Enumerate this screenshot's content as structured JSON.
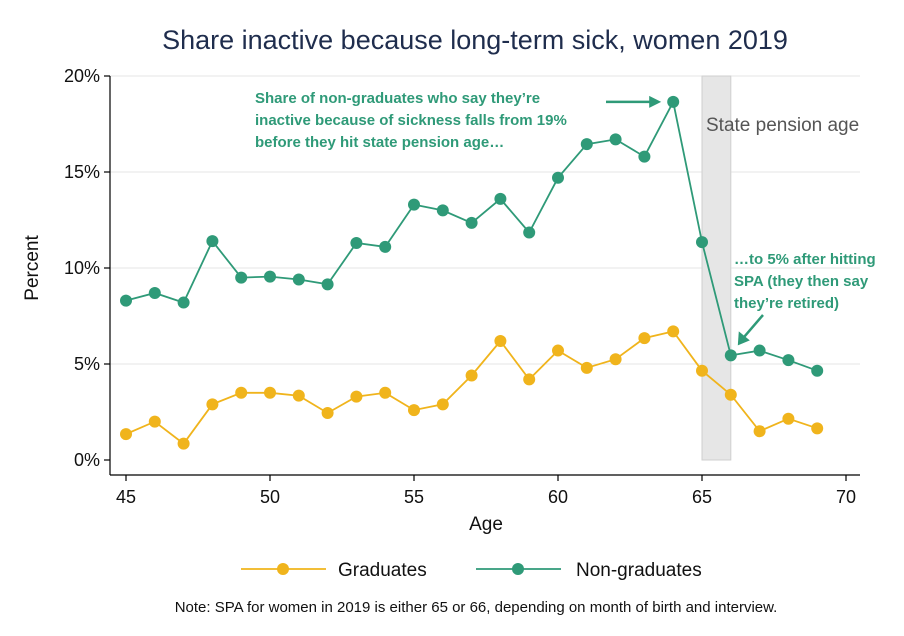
{
  "chart_data": {
    "type": "line",
    "title": "Share inactive because long-term sick, women 2019",
    "xlabel": "Age",
    "ylabel": "Percent",
    "xlim": [
      45,
      70
    ],
    "ylim": [
      0,
      20
    ],
    "x_ticks": [
      45,
      50,
      55,
      60,
      65,
      70
    ],
    "y_ticks": [
      0,
      5,
      10,
      15,
      20
    ],
    "y_tick_labels": [
      "0%",
      "5%",
      "10%",
      "15%",
      "20%"
    ],
    "grid": "horizontal",
    "legend_position": "bottom",
    "x": [
      45,
      46,
      47,
      48,
      49,
      50,
      51,
      52,
      53,
      54,
      55,
      56,
      57,
      58,
      59,
      60,
      61,
      62,
      63,
      64,
      65,
      66,
      67,
      68,
      69
    ],
    "series": [
      {
        "name": "Graduates",
        "color": "#f0b41c",
        "values": [
          1.35,
          2.0,
          0.85,
          2.9,
          3.5,
          3.5,
          3.35,
          2.45,
          3.3,
          3.5,
          2.6,
          2.9,
          4.4,
          6.2,
          4.2,
          5.7,
          4.8,
          5.25,
          6.35,
          6.7,
          4.65,
          3.4,
          1.5,
          2.15,
          1.65
        ]
      },
      {
        "name": "Non-graduates",
        "color": "#2f9a78",
        "values": [
          8.3,
          8.7,
          8.2,
          11.4,
          9.5,
          9.55,
          9.4,
          9.15,
          11.3,
          11.1,
          13.3,
          13.0,
          12.35,
          13.6,
          11.85,
          14.7,
          16.45,
          16.7,
          15.8,
          18.65,
          11.35,
          5.45,
          5.7,
          5.2,
          4.65
        ]
      }
    ],
    "shaded_region": {
      "x0": 65,
      "x1": 66,
      "label": "State pension age",
      "color": "#e6e6e6"
    },
    "annotations": [
      {
        "lines": [
          "Share of non-graduates who say they’re",
          "inactive because of sickness falls from 19%",
          "before they hit state pension age…"
        ],
        "color": "#2f9a78",
        "target": {
          "x": 64,
          "y": 18.65
        }
      },
      {
        "lines": [
          "…to 5% after hitting",
          "SPA (they then say",
          "they’re retired)"
        ],
        "color": "#2f9a78",
        "target": {
          "x": 66,
          "y": 5.45
        }
      }
    ],
    "note": "Note: SPA for women in 2019 is either 65 or 66, depending on month of birth and interview."
  }
}
